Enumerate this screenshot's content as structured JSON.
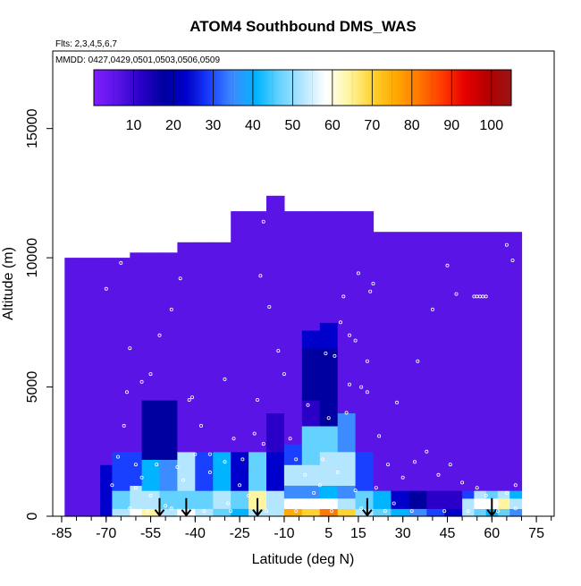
{
  "chart_data": {
    "type": "heatmap",
    "title": "ATOM4 Southbound DMS_WAS",
    "flights_label": "Flts: 2,3,4,5,6,7",
    "dates_label": "MMDD: 0427,0429,0501,0503,0506,0509",
    "xlabel": "Latitude (deg N)",
    "ylabel": "Altitude (m)",
    "xlim": [
      -88,
      81
    ],
    "ylim": [
      0,
      18000
    ],
    "x_ticks": [
      -85,
      -70,
      -55,
      -40,
      -25,
      -10,
      5,
      15,
      30,
      45,
      60,
      75
    ],
    "x_tick_labels": [
      "-85",
      "-70",
      "-55",
      "-40",
      "-25",
      "-10",
      "5",
      "15",
      "30",
      "45",
      "60",
      "75"
    ],
    "y_ticks": [
      0,
      5000,
      10000,
      15000
    ],
    "y_tick_labels": [
      "0",
      "5000",
      "10000",
      "15000"
    ],
    "colorbar": {
      "min": 0,
      "max": 105,
      "ticks": [
        10,
        20,
        30,
        40,
        50,
        60,
        70,
        80,
        90,
        100
      ],
      "tick_labels": [
        "10",
        "20",
        "30",
        "40",
        "50",
        "60",
        "70",
        "80",
        "90",
        "100"
      ],
      "colors": [
        "#7f1fff",
        "#5a14e6",
        "#2a00c8",
        "#0000a0",
        "#0000cc",
        "#1a40ff",
        "#3c8cff",
        "#00b4ff",
        "#64d2ff",
        "#b4e6ff",
        "#ffffff",
        "#fff5a0",
        "#ffd232",
        "#ffaa00",
        "#ff7800",
        "#ff3c00",
        "#e60000",
        "#b40000",
        "#9a1414"
      ]
    },
    "grid": false,
    "columns": [
      {
        "x0": -84,
        "x1": -80,
        "top": 10000,
        "cells": [
          [
            0,
            10000,
            1
          ]
        ]
      },
      {
        "x0": -80,
        "x1": -72,
        "top": 10000,
        "cells": [
          [
            0,
            10000,
            1
          ]
        ]
      },
      {
        "x0": -72,
        "x1": -68,
        "top": 10000,
        "cells": [
          [
            0,
            2000,
            4
          ],
          [
            2000,
            10000,
            1
          ]
        ]
      },
      {
        "x0": -68,
        "x1": -62,
        "top": 10000,
        "cells": [
          [
            0,
            300,
            9
          ],
          [
            300,
            1000,
            8
          ],
          [
            1000,
            2500,
            5
          ],
          [
            2500,
            10000,
            1
          ]
        ]
      },
      {
        "x0": -62,
        "x1": -58,
        "top": 10200,
        "cells": [
          [
            0,
            300,
            10
          ],
          [
            300,
            1200,
            9
          ],
          [
            1200,
            2500,
            5
          ],
          [
            2500,
            10200,
            1
          ]
        ]
      },
      {
        "x0": -58,
        "x1": -52,
        "top": 10200,
        "cells": [
          [
            0,
            300,
            11
          ],
          [
            300,
            1000,
            9
          ],
          [
            1000,
            2200,
            7
          ],
          [
            2200,
            4500,
            3
          ],
          [
            4500,
            10200,
            1
          ]
        ]
      },
      {
        "x0": -52,
        "x1": -46,
        "top": 10200,
        "cells": [
          [
            0,
            300,
            9
          ],
          [
            300,
            1000,
            8
          ],
          [
            1000,
            2200,
            6
          ],
          [
            2200,
            4500,
            3
          ],
          [
            4500,
            10200,
            1
          ]
        ]
      },
      {
        "x0": -46,
        "x1": -40,
        "top": 10600,
        "cells": [
          [
            0,
            300,
            10
          ],
          [
            300,
            1000,
            8
          ],
          [
            1000,
            2500,
            9
          ],
          [
            2500,
            10600,
            1
          ]
        ]
      },
      {
        "x0": -40,
        "x1": -34,
        "top": 10600,
        "cells": [
          [
            0,
            300,
            9
          ],
          [
            300,
            1000,
            8
          ],
          [
            1000,
            2500,
            5
          ],
          [
            2500,
            10600,
            1
          ]
        ]
      },
      {
        "x0": -34,
        "x1": -28,
        "top": 10600,
        "cells": [
          [
            0,
            300,
            8
          ],
          [
            300,
            1000,
            9
          ],
          [
            1000,
            2500,
            7
          ],
          [
            2500,
            10600,
            1
          ]
        ]
      },
      {
        "x0": -28,
        "x1": -22,
        "top": 11800,
        "cells": [
          [
            0,
            300,
            7
          ],
          [
            300,
            1000,
            8
          ],
          [
            1000,
            2500,
            4
          ],
          [
            2500,
            11800,
            1
          ]
        ]
      },
      {
        "x0": -22,
        "x1": -16,
        "top": 11800,
        "cells": [
          [
            0,
            300,
            9
          ],
          [
            300,
            1000,
            11
          ],
          [
            1000,
            2500,
            8
          ],
          [
            2500,
            11800,
            1
          ]
        ]
      },
      {
        "x0": -16,
        "x1": -10,
        "top": 12400,
        "cells": [
          [
            0,
            300,
            9
          ],
          [
            300,
            1000,
            9
          ],
          [
            1000,
            2500,
            4
          ],
          [
            2500,
            4000,
            2
          ],
          [
            4000,
            12400,
            1
          ]
        ]
      },
      {
        "x0": -10,
        "x1": -4,
        "top": 11800,
        "cells": [
          [
            0,
            300,
            13
          ],
          [
            300,
            700,
            10
          ],
          [
            700,
            1200,
            6
          ],
          [
            1200,
            2000,
            9
          ],
          [
            2000,
            2800,
            5
          ],
          [
            2800,
            11800,
            1
          ]
        ]
      },
      {
        "x0": -4,
        "x1": 2,
        "top": 11800,
        "cells": [
          [
            0,
            300,
            12
          ],
          [
            300,
            700,
            10
          ],
          [
            700,
            1200,
            6
          ],
          [
            1200,
            2000,
            9
          ],
          [
            2000,
            3500,
            8
          ],
          [
            3500,
            4500,
            2
          ],
          [
            4500,
            6500,
            3
          ],
          [
            6500,
            7200,
            4
          ],
          [
            7200,
            11800,
            1
          ]
        ]
      },
      {
        "x0": 2,
        "x1": 8,
        "top": 11800,
        "cells": [
          [
            0,
            300,
            14
          ],
          [
            300,
            700,
            10
          ],
          [
            700,
            1200,
            7
          ],
          [
            1200,
            2500,
            9
          ],
          [
            2500,
            3500,
            8
          ],
          [
            3500,
            6500,
            3
          ],
          [
            6500,
            7500,
            4
          ],
          [
            7500,
            11800,
            1
          ]
        ]
      },
      {
        "x0": 8,
        "x1": 14,
        "top": 11800,
        "cells": [
          [
            0,
            300,
            12
          ],
          [
            300,
            700,
            9
          ],
          [
            700,
            1200,
            6
          ],
          [
            1200,
            2500,
            9
          ],
          [
            2500,
            4000,
            6
          ],
          [
            4000,
            11800,
            1
          ]
        ]
      },
      {
        "x0": 14,
        "x1": 20,
        "top": 11800,
        "cells": [
          [
            0,
            300,
            9
          ],
          [
            300,
            1000,
            8
          ],
          [
            1000,
            2500,
            5
          ],
          [
            2500,
            11800,
            1
          ]
        ]
      },
      {
        "x0": 20,
        "x1": 26,
        "top": 11000,
        "cells": [
          [
            0,
            300,
            8
          ],
          [
            300,
            1000,
            7
          ],
          [
            1000,
            11000,
            1
          ]
        ]
      },
      {
        "x0": 26,
        "x1": 32,
        "top": 11000,
        "cells": [
          [
            0,
            300,
            7
          ],
          [
            300,
            1000,
            4
          ],
          [
            1000,
            11000,
            1
          ]
        ]
      },
      {
        "x0": 32,
        "x1": 38,
        "top": 11000,
        "cells": [
          [
            0,
            300,
            6
          ],
          [
            300,
            1000,
            3
          ],
          [
            1000,
            11000,
            1
          ]
        ]
      },
      {
        "x0": 38,
        "x1": 44,
        "top": 11000,
        "cells": [
          [
            0,
            300,
            5
          ],
          [
            300,
            1000,
            2
          ],
          [
            1000,
            11000,
            1
          ]
        ]
      },
      {
        "x0": 44,
        "x1": 50,
        "top": 11000,
        "cells": [
          [
            0,
            300,
            4
          ],
          [
            300,
            1000,
            2
          ],
          [
            1000,
            11000,
            1
          ]
        ]
      },
      {
        "x0": 50,
        "x1": 54,
        "top": 11000,
        "cells": [
          [
            0,
            300,
            9
          ],
          [
            300,
            700,
            9
          ],
          [
            700,
            1000,
            5
          ],
          [
            1000,
            11000,
            1
          ]
        ]
      },
      {
        "x0": 54,
        "x1": 58,
        "top": 11000,
        "cells": [
          [
            0,
            300,
            8
          ],
          [
            300,
            700,
            10
          ],
          [
            700,
            1000,
            9
          ],
          [
            1000,
            11000,
            1
          ]
        ]
      },
      {
        "x0": 58,
        "x1": 62,
        "top": 11000,
        "cells": [
          [
            0,
            300,
            7
          ],
          [
            300,
            700,
            10
          ],
          [
            700,
            1000,
            8
          ],
          [
            1000,
            11000,
            1
          ]
        ]
      },
      {
        "x0": 62,
        "x1": 66,
        "top": 11000,
        "cells": [
          [
            0,
            300,
            8
          ],
          [
            300,
            700,
            11
          ],
          [
            700,
            1000,
            9
          ],
          [
            1000,
            11000,
            1
          ]
        ]
      },
      {
        "x0": 66,
        "x1": 70,
        "top": 11000,
        "cells": [
          [
            0,
            300,
            6
          ],
          [
            300,
            700,
            9
          ],
          [
            700,
            1000,
            7
          ],
          [
            1000,
            11000,
            1
          ]
        ]
      }
    ],
    "arrows_lat": [
      -52,
      -43,
      -19,
      18,
      60
    ],
    "samples": [
      [
        -70,
        8800
      ],
      [
        -65,
        9800
      ],
      [
        -62,
        6500
      ],
      [
        -63,
        4800
      ],
      [
        -58,
        5200
      ],
      [
        -55,
        5500
      ],
      [
        -52,
        7000
      ],
      [
        -48,
        8000
      ],
      [
        -45,
        9200
      ],
      [
        -42,
        4500
      ],
      [
        -38,
        3500
      ],
      [
        -35,
        2400
      ],
      [
        -30,
        2100
      ],
      [
        -60,
        2000
      ],
      [
        -58,
        1500
      ],
      [
        -55,
        800
      ],
      [
        -50,
        400
      ],
      [
        -46,
        1900
      ],
      [
        -40,
        2400
      ],
      [
        -35,
        1700
      ],
      [
        -29,
        500
      ],
      [
        -25,
        1200
      ],
      [
        -22,
        800
      ],
      [
        -19,
        4500
      ],
      [
        -18,
        9300
      ],
      [
        -17,
        11400
      ],
      [
        -15,
        8100
      ],
      [
        -12,
        6400
      ],
      [
        -10,
        5500
      ],
      [
        -8,
        3000
      ],
      [
        -6,
        2200
      ],
      [
        -3,
        1600
      ],
      [
        0,
        900
      ],
      [
        3,
        2200
      ],
      [
        5,
        3800
      ],
      [
        7,
        6200
      ],
      [
        9,
        7500
      ],
      [
        10,
        8500
      ],
      [
        12,
        7000
      ],
      [
        14,
        6800
      ],
      [
        16,
        5000
      ],
      [
        18,
        4800
      ],
      [
        19,
        8700
      ],
      [
        20,
        9000
      ],
      [
        15,
        9400
      ],
      [
        18,
        6000
      ],
      [
        22,
        3100
      ],
      [
        25,
        2000
      ],
      [
        30,
        1500
      ],
      [
        34,
        2100
      ],
      [
        38,
        2500
      ],
      [
        42,
        1600
      ],
      [
        46,
        2000
      ],
      [
        50,
        1300
      ],
      [
        55,
        1100
      ],
      [
        58,
        800
      ],
      [
        62,
        500
      ],
      [
        65,
        900
      ],
      [
        68,
        1200
      ],
      [
        45,
        9700
      ],
      [
        48,
        8600
      ],
      [
        54,
        8500
      ],
      [
        55,
        8500
      ],
      [
        56,
        8500
      ],
      [
        57,
        8500
      ],
      [
        58,
        8500
      ],
      [
        65,
        10500
      ],
      [
        67,
        9900
      ],
      [
        40,
        8000
      ],
      [
        35,
        6000
      ],
      [
        28,
        4400
      ],
      [
        2,
        1200
      ],
      [
        4,
        6300
      ],
      [
        -30,
        5300
      ],
      [
        -27,
        3000
      ],
      [
        -20,
        3200
      ],
      [
        -17,
        2800
      ],
      [
        -64,
        3500
      ],
      [
        -66,
        2300
      ],
      [
        -68,
        1200
      ],
      [
        -62,
        300
      ],
      [
        -56,
        200
      ],
      [
        -48,
        300
      ],
      [
        -37,
        200
      ],
      [
        -28,
        200
      ],
      [
        -16,
        200
      ],
      [
        -6,
        200
      ],
      [
        6,
        200
      ],
      [
        16,
        300
      ],
      [
        24,
        200
      ],
      [
        33,
        200
      ],
      [
        44,
        200
      ],
      [
        52,
        200
      ],
      [
        62,
        200
      ],
      [
        68,
        300
      ],
      [
        -41,
        4600
      ],
      [
        -44,
        1400
      ],
      [
        -53,
        2000
      ],
      [
        -60,
        1100
      ],
      [
        -24,
        2200
      ],
      [
        12,
        5100
      ],
      [
        -2,
        4300
      ],
      [
        8,
        1700
      ],
      [
        14,
        1000
      ],
      [
        11,
        4000
      ],
      [
        21,
        1100
      ],
      [
        27,
        500
      ]
    ]
  }
}
